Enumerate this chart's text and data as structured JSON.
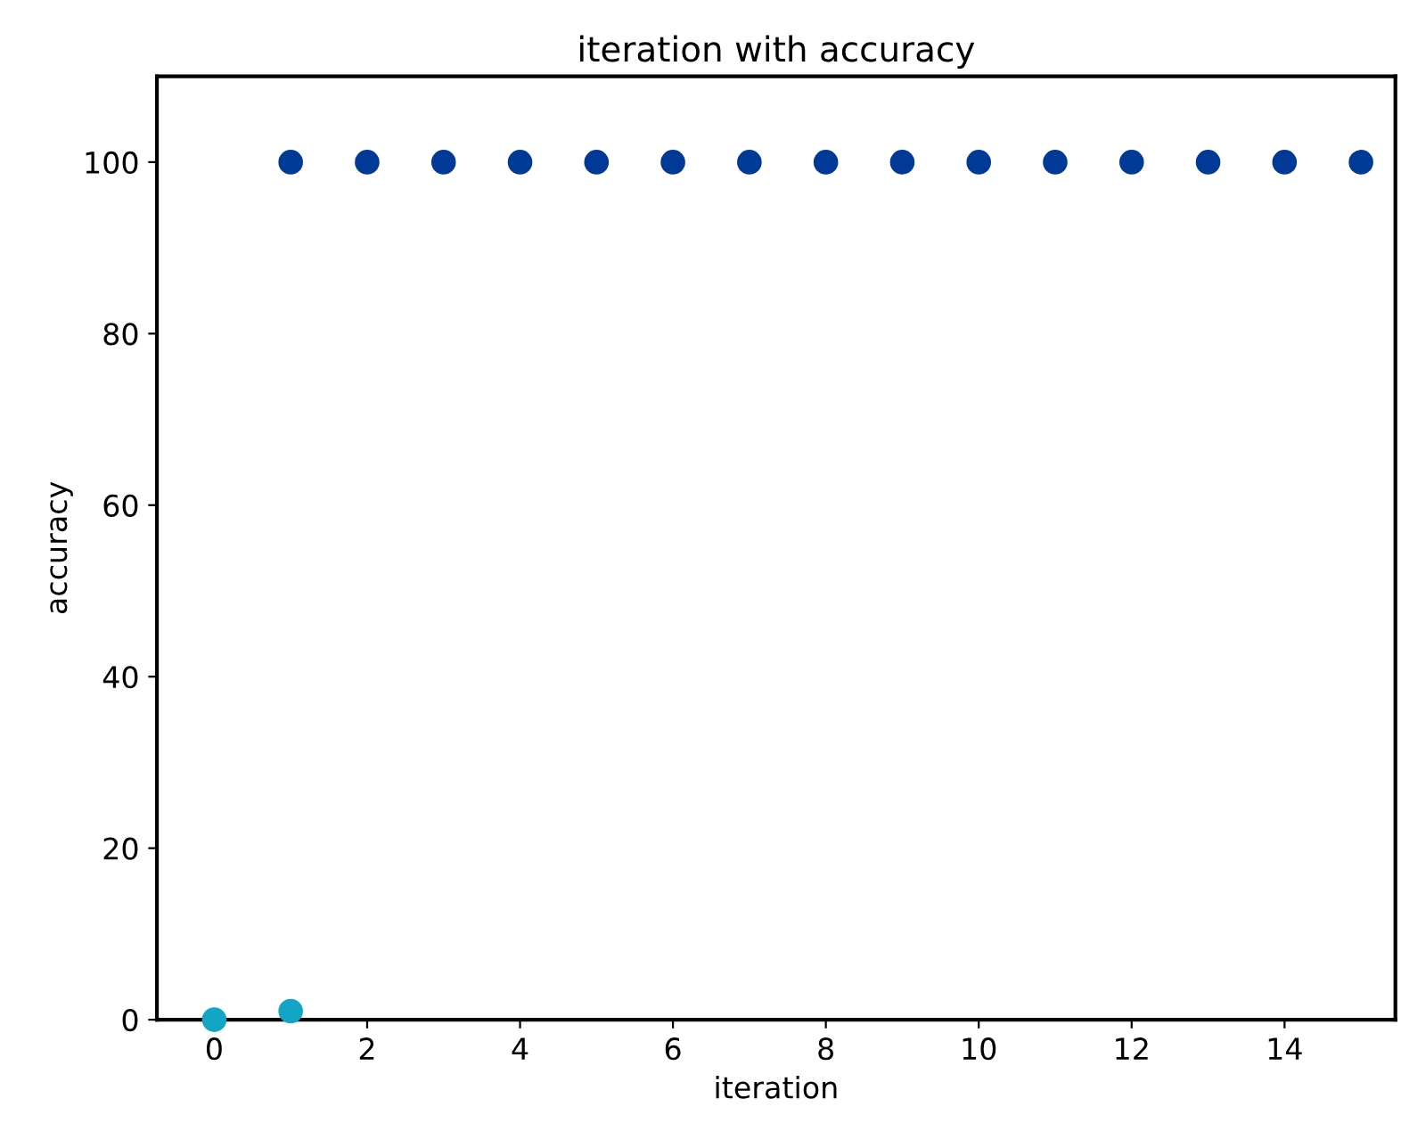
{
  "chart_data": {
    "type": "scatter",
    "title": "iteration with accuracy",
    "xlabel": "iteration",
    "ylabel": "accuracy",
    "series": [
      {
        "color": "#12a6c4",
        "x": [
          0,
          1
        ],
        "values": [
          0,
          1
        ]
      },
      {
        "color": "#003a96",
        "x": [
          1,
          2,
          3,
          4,
          5,
          6,
          7,
          8,
          9,
          10,
          11,
          12,
          13,
          14,
          15
        ],
        "values": [
          100,
          100,
          100,
          100,
          100,
          100,
          100,
          100,
          100,
          100,
          100,
          100,
          100,
          100,
          100
        ]
      }
    ],
    "xlim": [
      -0.75,
      15.45
    ],
    "xticks": [
      0,
      2,
      4,
      6,
      8,
      10,
      12,
      14
    ],
    "ylim": [
      0,
      110
    ],
    "yticks": [
      0,
      20,
      40,
      60,
      80,
      100
    ],
    "grid": false,
    "legend": false
  }
}
